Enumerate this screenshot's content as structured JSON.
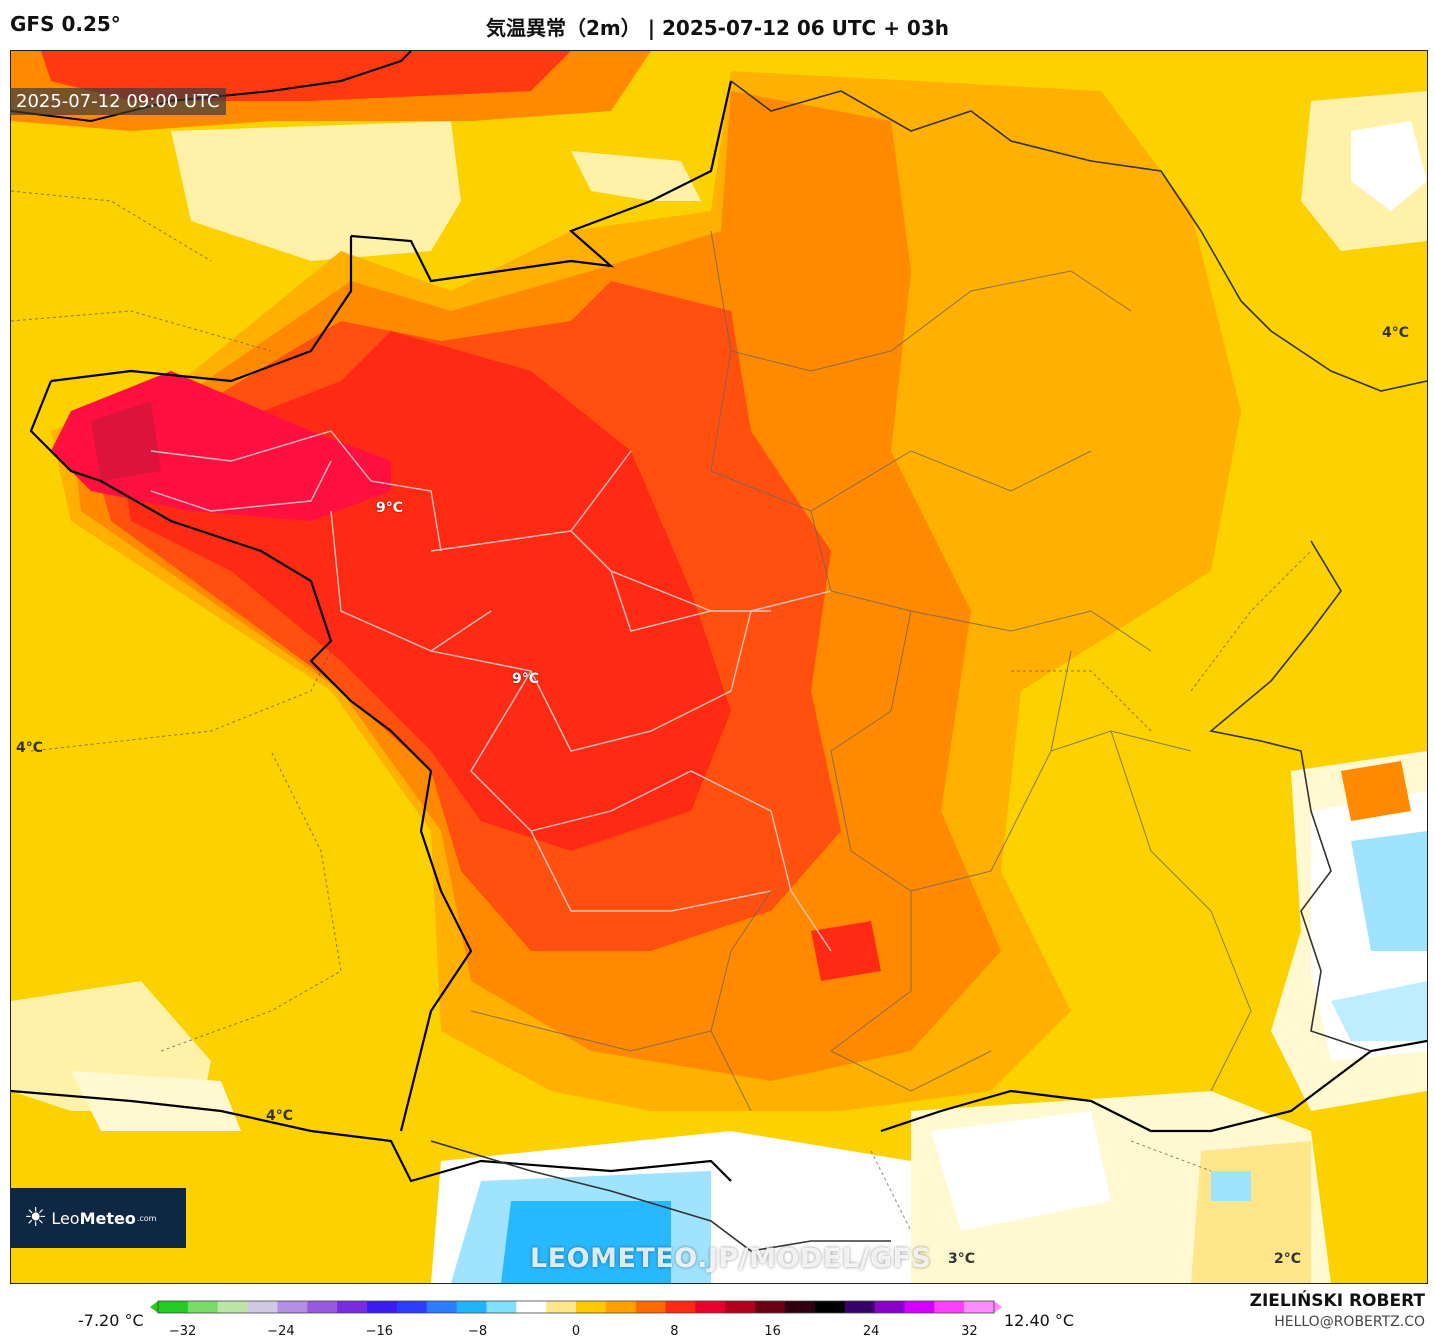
{
  "header": {
    "model": "GFS 0.25°",
    "title": "気温異常（2m） | 2025-07-12 06 UTC + 03h"
  },
  "map": {
    "timestamp": "2025-07-12 09:00 UTC",
    "watermark_url": "LEOMETEO.JP/MODEL/GFS",
    "logo": {
      "brand_light": "Leo",
      "brand_bold": "Meteo",
      "suffix": ".com",
      "icon": "sun-icon"
    },
    "contour_labels": [
      {
        "text": "9°C"
      },
      {
        "text": "9°C"
      },
      {
        "text": "4°C"
      },
      {
        "text": "4°C"
      },
      {
        "text": "4°C"
      },
      {
        "text": "3°C"
      },
      {
        "text": "2°C"
      }
    ],
    "colors": {
      "strong_warm": "#ff1030",
      "warm_red": "#ff3a10",
      "orange": "#ff8a00",
      "light_orange": "#ffb000",
      "yellow": "#fbd100",
      "pale_yellow": "#fff2a8",
      "neutral": "#ffffff",
      "cool_blue": "#9fe3ff",
      "blue": "#28b8ff"
    }
  },
  "colorbar": {
    "min_label": "-7.20 °C",
    "max_label": "12.40 °C",
    "ticks": [
      "−32",
      "−24",
      "−16",
      "−8",
      "0",
      "8",
      "16",
      "24",
      "32"
    ],
    "range": [
      -34,
      34
    ],
    "stops": [
      "#22cc22",
      "#77dd66",
      "#bbe6a8",
      "#cfc9e6",
      "#b48ee6",
      "#9958e0",
      "#7a2be0",
      "#3a1cf2",
      "#2c3cff",
      "#2b7cff",
      "#20b4ff",
      "#7fe0ff",
      "#ffffff",
      "#ffe68a",
      "#ffc800",
      "#ffa000",
      "#ff6a00",
      "#ff2b10",
      "#e8002a",
      "#b0001c",
      "#6a0010",
      "#300010",
      "#000000",
      "#3a006a",
      "#8a00c8",
      "#d400ff",
      "#ff40ff",
      "#ff8cff"
    ]
  },
  "footer": {
    "author": "ZIELIŃSKI ROBERT",
    "email": "HELLO@ROBERTZ.CO"
  }
}
